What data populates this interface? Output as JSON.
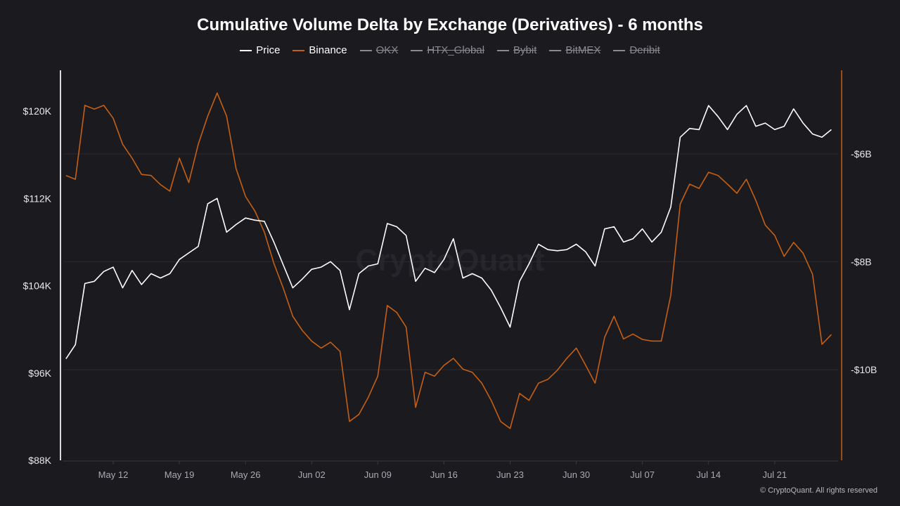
{
  "title": "Cumulative Volume Delta by Exchange (Derivatives) - 6 months",
  "legend": [
    {
      "label": "Price",
      "color": "#ffffff",
      "visible": true
    },
    {
      "label": "Binance",
      "color": "#c45f14",
      "visible": true
    },
    {
      "label": "OKX",
      "color": "#8a8a90",
      "visible": false
    },
    {
      "label": "HTX_Global",
      "color": "#8a8a90",
      "visible": false
    },
    {
      "label": "Bybit",
      "color": "#8a8a90",
      "visible": false
    },
    {
      "label": "BitMEX",
      "color": "#8a8a90",
      "visible": false
    },
    {
      "label": "Deribit",
      "color": "#8a8a90",
      "visible": false
    }
  ],
  "watermark": "CryptoQuant",
  "copyright": "© CryptoQuant. All rights reserved",
  "chart_data": {
    "type": "line",
    "title": "Cumulative Volume Delta by Exchange (Derivatives) - 6 months",
    "x_tick_labels": [
      "May 12",
      "May 19",
      "May 26",
      "Jun 02",
      "Jun 09",
      "Jun 16",
      "Jun 23",
      "Jun 30",
      "Jul 07",
      "Jul 14",
      "Jul 21"
    ],
    "y_left": {
      "tick_labels": [
        "$88K",
        "$96K",
        "$104K",
        "$112K",
        "$120K"
      ],
      "ticks": [
        88,
        96,
        104,
        112,
        120
      ],
      "unit": "K USD"
    },
    "y_right": {
      "tick_labels": [
        "-$10B",
        "-$8B",
        "-$6B"
      ],
      "ticks": [
        -10,
        -8,
        -6
      ],
      "unit": "B USD"
    },
    "grid": true,
    "legend_position": "top",
    "x_start": "May 07",
    "x_step_days": 1,
    "series": [
      {
        "name": "Price",
        "axis": "left",
        "color": "#ffffff",
        "values": [
          97.3,
          98.6,
          104.2,
          104.4,
          105.3,
          105.7,
          103.8,
          105.4,
          104.1,
          105.1,
          104.7,
          105.1,
          106.4,
          107.0,
          107.6,
          111.5,
          112.0,
          108.9,
          109.6,
          110.2,
          110.0,
          109.9,
          108.0,
          105.9,
          103.8,
          104.6,
          105.5,
          105.7,
          106.2,
          105.4,
          101.8,
          105.1,
          105.8,
          106.0,
          109.7,
          109.4,
          108.6,
          104.4,
          105.6,
          105.2,
          106.4,
          108.3,
          104.7,
          105.1,
          104.7,
          103.6,
          102.0,
          100.2,
          104.4,
          106.0,
          107.8,
          107.3,
          107.2,
          107.3,
          107.8,
          107.1,
          105.8,
          109.2,
          109.4,
          108.0,
          108.3,
          109.2,
          108.0,
          108.9,
          111.2,
          117.6,
          118.4,
          118.3,
          120.5,
          119.5,
          118.3,
          119.7,
          120.5,
          118.6,
          118.9,
          118.3,
          118.6,
          120.2,
          118.9,
          117.9,
          117.6,
          118.3
        ]
      },
      {
        "name": "Binance",
        "axis": "right",
        "color": "#c45f14",
        "values": [
          -6.4,
          -6.47,
          -5.1,
          -5.17,
          -5.1,
          -5.34,
          -5.82,
          -6.08,
          -6.38,
          -6.4,
          -6.57,
          -6.69,
          -6.08,
          -6.53,
          -5.82,
          -5.3,
          -4.87,
          -5.3,
          -6.27,
          -6.79,
          -7.06,
          -7.45,
          -8.03,
          -8.49,
          -9.01,
          -9.27,
          -9.47,
          -9.6,
          -9.49,
          -9.66,
          -10.96,
          -10.83,
          -10.51,
          -10.12,
          -8.81,
          -8.94,
          -9.21,
          -10.7,
          -10.05,
          -10.12,
          -9.92,
          -9.79,
          -9.99,
          -10.05,
          -10.25,
          -10.57,
          -10.96,
          -11.09,
          -10.44,
          -10.57,
          -10.25,
          -10.18,
          -10.01,
          -9.79,
          -9.6,
          -9.92,
          -10.25,
          -9.4,
          -9.01,
          -9.43,
          -9.34,
          -9.44,
          -9.47,
          -9.47,
          -8.62,
          -6.93,
          -6.56,
          -6.64,
          -6.34,
          -6.4,
          -6.56,
          -6.73,
          -6.47,
          -6.86,
          -7.32,
          -7.51,
          -7.9,
          -7.64,
          -7.84,
          -8.23,
          -9.53,
          -9.35
        ]
      }
    ]
  }
}
